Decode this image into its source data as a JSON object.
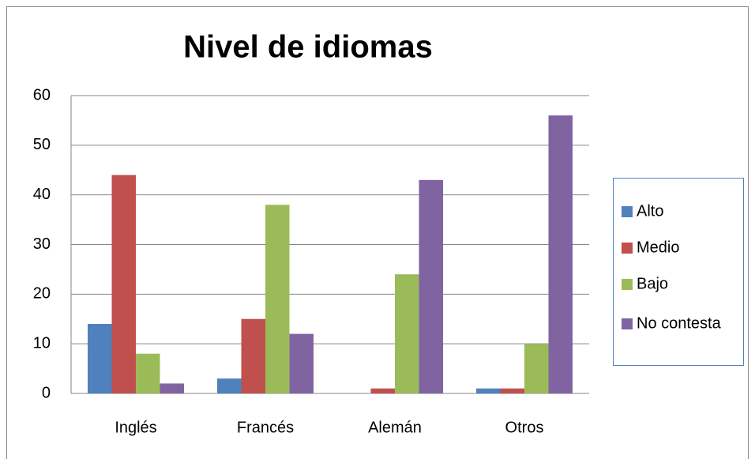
{
  "chart_data": {
    "type": "bar",
    "title": "Nivel de idiomas",
    "categories": [
      "Inglés",
      "Francés",
      "Alemán",
      "Otros"
    ],
    "series": [
      {
        "name": "Alto",
        "color": "#4f81bd",
        "values": [
          14,
          3,
          0,
          1
        ]
      },
      {
        "name": "Medio",
        "color": "#c0504d",
        "values": [
          44,
          15,
          1,
          1
        ]
      },
      {
        "name": "Bajo",
        "color": "#9bbb59",
        "values": [
          8,
          38,
          24,
          10
        ]
      },
      {
        "name": "No contesta",
        "color": "#8064a2",
        "values": [
          2,
          12,
          43,
          56
        ]
      }
    ],
    "ylim": [
      0,
      60
    ],
    "yticks": [
      0,
      10,
      20,
      30,
      40,
      50,
      60
    ],
    "grid": true,
    "legend": "right"
  }
}
